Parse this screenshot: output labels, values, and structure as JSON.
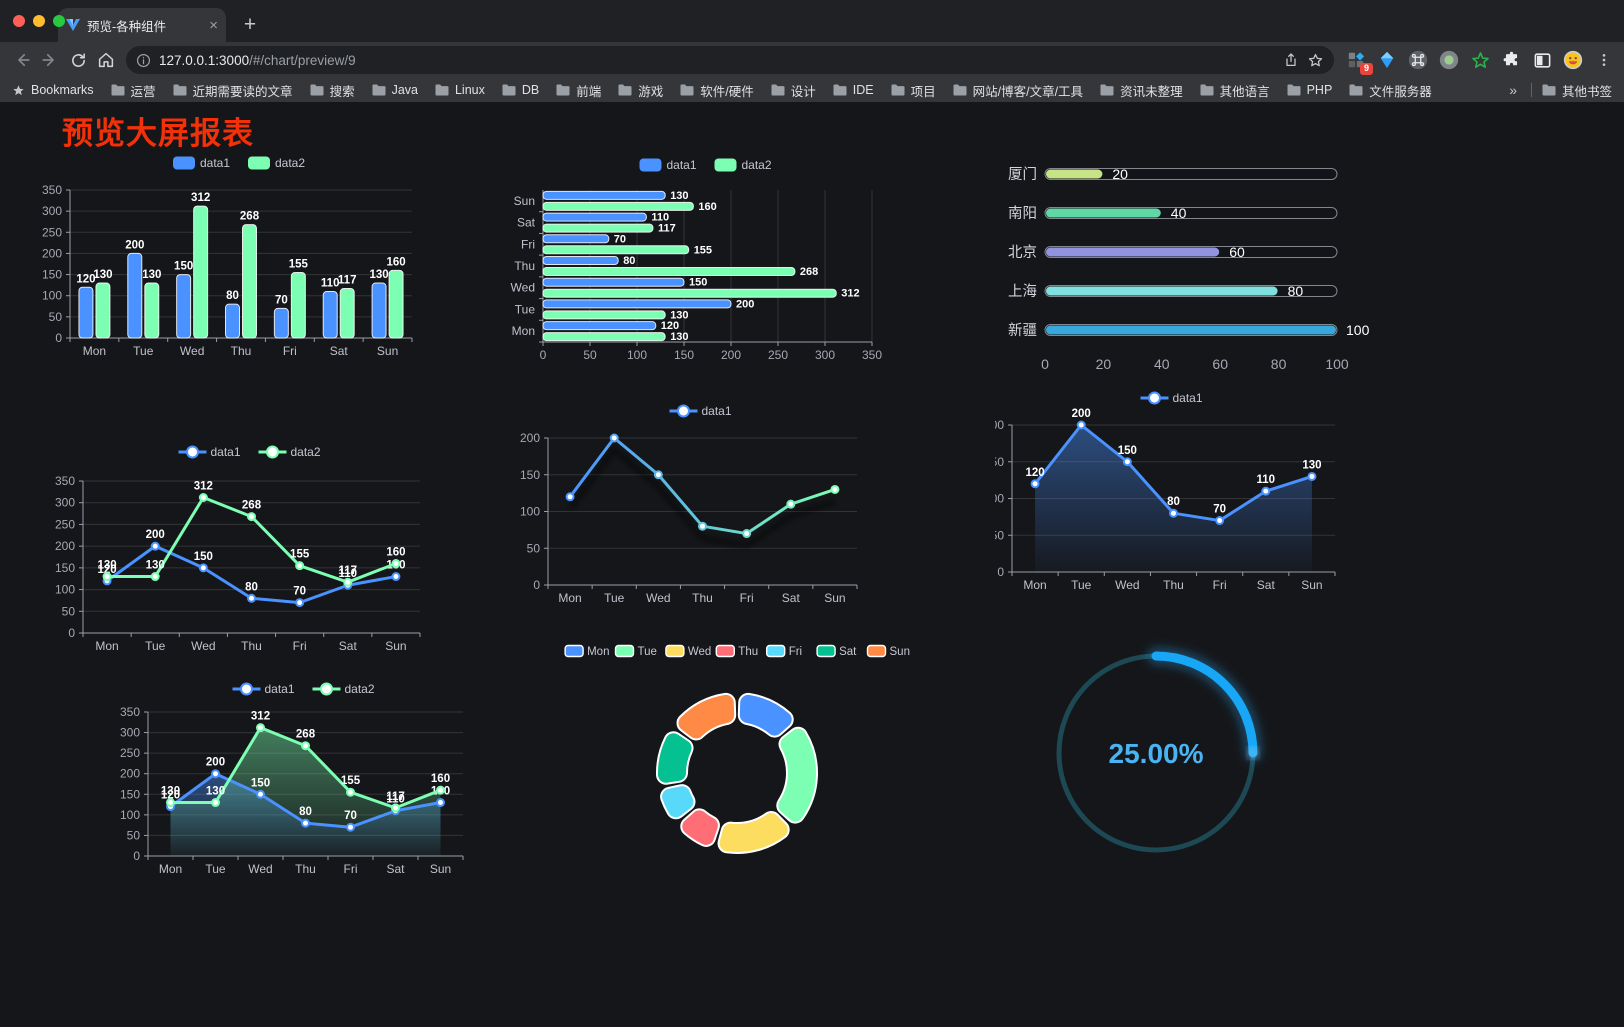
{
  "browser": {
    "tab_title": "预览-各种组件",
    "url_host": "127.0.0.1:3000",
    "url_path": "/#/chart/preview/9",
    "bookmarks_label": "Bookmarks",
    "bookmarks": [
      "运营",
      "近期需要读的文章",
      "搜索",
      "Java",
      "Linux",
      "DB",
      "前端",
      "游戏",
      "软件/硬件",
      "设计",
      "IDE",
      "项目",
      "网站/博客/文章/工具",
      "资讯未整理",
      "其他语言",
      "PHP",
      "文件服务器"
    ],
    "overflow_chevron": "»",
    "other_bookmarks": "其他书签",
    "extension_badge": "9",
    "new_tab_label": "+",
    "tab_close_label": "×"
  },
  "page": {
    "title": "预览大屏报表",
    "title_color": "#f23108",
    "background": "#151619"
  },
  "chart_data": [
    {
      "type": "bar",
      "categories": [
        "Mon",
        "Tue",
        "Wed",
        "Thu",
        "Fri",
        "Sat",
        "Sun"
      ],
      "series": [
        {
          "name": "data1",
          "color": "#4992ff",
          "values": [
            120,
            200,
            150,
            80,
            70,
            110,
            130
          ]
        },
        {
          "name": "data2",
          "color": "#7cffb2",
          "values": [
            130,
            130,
            312,
            268,
            155,
            117,
            160
          ]
        }
      ],
      "ylim": [
        0,
        350
      ],
      "ystep": 50,
      "legend_position": "top",
      "grid": true
    },
    {
      "type": "hbar",
      "categories": [
        "Mon",
        "Tue",
        "Wed",
        "Thu",
        "Fri",
        "Sat",
        "Sun"
      ],
      "series": [
        {
          "name": "data1",
          "color": "#4992ff",
          "values": [
            120,
            200,
            150,
            80,
            70,
            110,
            130
          ]
        },
        {
          "name": "data2",
          "color": "#7cffb2",
          "values": [
            130,
            130,
            312,
            268,
            155,
            117,
            160
          ]
        }
      ],
      "xlim": [
        0,
        350
      ],
      "xstep": 50,
      "legend_position": "top",
      "grid": true
    },
    {
      "type": "progress",
      "max": 100,
      "xticks": [
        0,
        20,
        40,
        60,
        80,
        100
      ],
      "items": [
        {
          "label": "厦门",
          "value": 20,
          "color": "#c6e386"
        },
        {
          "label": "南阳",
          "value": 40,
          "color": "#5fd8a5"
        },
        {
          "label": "北京",
          "value": 60,
          "color": "#9193de"
        },
        {
          "label": "上海",
          "value": 80,
          "color": "#7fe0df"
        },
        {
          "label": "新疆",
          "value": 100,
          "color": "#38a8dc"
        }
      ]
    },
    {
      "type": "line",
      "show_labels": true,
      "categories": [
        "Mon",
        "Tue",
        "Wed",
        "Thu",
        "Fri",
        "Sat",
        "Sun"
      ],
      "series": [
        {
          "name": "data1",
          "color": "#4992ff",
          "values": [
            120,
            200,
            150,
            80,
            70,
            110,
            130
          ]
        },
        {
          "name": "data2",
          "color": "#7cffb2",
          "values": [
            130,
            130,
            312,
            268,
            155,
            117,
            160
          ]
        }
      ],
      "ylim": [
        0,
        350
      ],
      "ystep": 50,
      "legend_position": "top",
      "grid": true
    },
    {
      "type": "line",
      "show_labels": false,
      "shadow": true,
      "gradient_stroke": [
        "#4992ff",
        "#7cffb2"
      ],
      "categories": [
        "Mon",
        "Tue",
        "Wed",
        "Thu",
        "Fri",
        "Sat",
        "Sun"
      ],
      "series": [
        {
          "name": "data1",
          "color": "#4992ff",
          "values": [
            120,
            200,
            150,
            80,
            70,
            110,
            130
          ]
        }
      ],
      "ylim": [
        0,
        200
      ],
      "ystep": 50,
      "legend_position": "top",
      "grid": true
    },
    {
      "type": "line",
      "show_labels": true,
      "area": true,
      "categories": [
        "Mon",
        "Tue",
        "Wed",
        "Thu",
        "Fri",
        "Sat",
        "Sun"
      ],
      "series": [
        {
          "name": "data1",
          "color": "#4992ff",
          "values": [
            120,
            200,
            150,
            80,
            70,
            110,
            130
          ]
        }
      ],
      "ylim": [
        0,
        200
      ],
      "ystep": 50,
      "legend_position": "top",
      "grid": true
    },
    {
      "type": "line",
      "show_labels": true,
      "area": true,
      "categories": [
        "Mon",
        "Tue",
        "Wed",
        "Thu",
        "Fri",
        "Sat",
        "Sun"
      ],
      "series": [
        {
          "name": "data1",
          "color": "#4992ff",
          "values": [
            120,
            200,
            150,
            80,
            70,
            110,
            130
          ]
        },
        {
          "name": "data2",
          "color": "#7cffb2",
          "values": [
            130,
            130,
            312,
            268,
            155,
            117,
            160
          ]
        }
      ],
      "ylim": [
        0,
        350
      ],
      "ystep": 50,
      "legend_position": "top",
      "grid": true
    },
    {
      "type": "pie",
      "legend_position": "top",
      "items": [
        {
          "name": "Mon",
          "value": 120,
          "color": "#4992ff"
        },
        {
          "name": "Tue",
          "value": 200,
          "color": "#7cffb2"
        },
        {
          "name": "Wed",
          "value": 150,
          "color": "#fddd60"
        },
        {
          "name": "Thu",
          "value": 80,
          "color": "#ff6e76"
        },
        {
          "name": "Fri",
          "value": 70,
          "color": "#58d9f9"
        },
        {
          "name": "Sat",
          "value": 110,
          "color": "#05c091"
        },
        {
          "name": "Sun",
          "value": 130,
          "color": "#ff8a45"
        }
      ]
    },
    {
      "type": "gauge",
      "label": "25.00%",
      "percent": 25,
      "color": "#18a7f6",
      "track_color": "#1d4954",
      "text_color": "#49b4f3"
    }
  ]
}
